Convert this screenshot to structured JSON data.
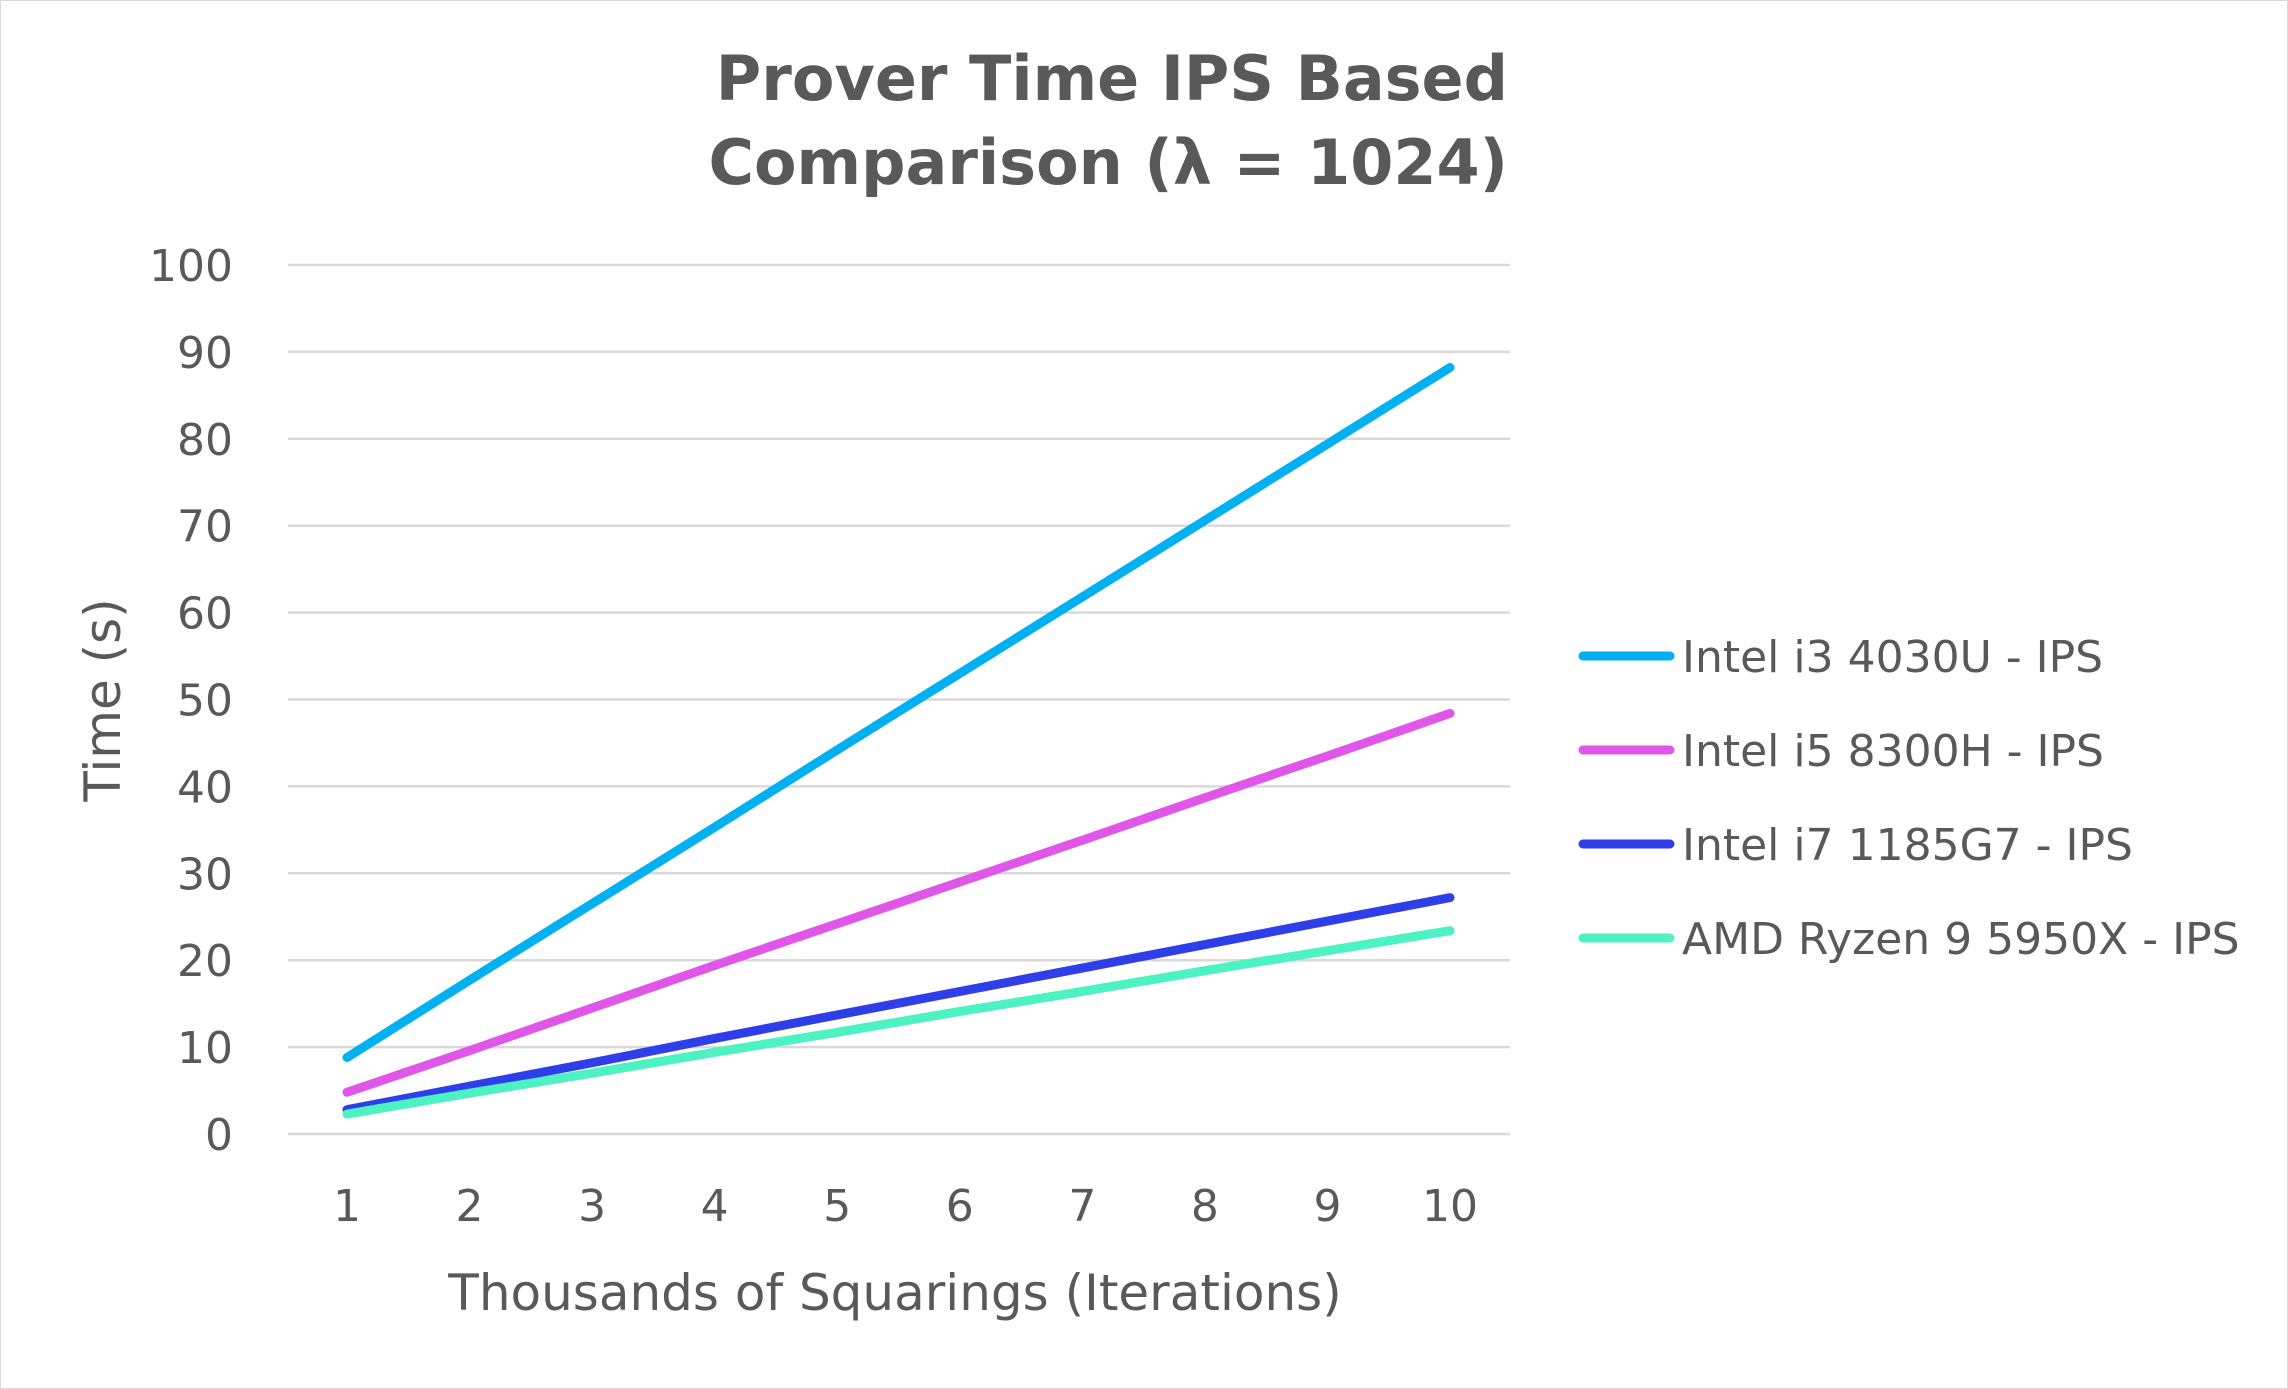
{
  "chart_data": {
    "type": "line",
    "title": [
      "Prover Time IPS Based",
      "Comparison (λ = 1024)"
    ],
    "xlabel": "Thousands of Squarings (Iterations)",
    "ylabel": "Time (s)",
    "x": [
      1,
      2,
      3,
      4,
      5,
      6,
      7,
      8,
      9,
      10
    ],
    "ylim": [
      0,
      100
    ],
    "yticks": [
      0,
      10,
      20,
      30,
      40,
      50,
      60,
      70,
      80,
      90,
      100
    ],
    "grid": true,
    "legend_position": "right",
    "series": [
      {
        "name": "Intel i3 4030U - IPS",
        "color": "#00b0f0",
        "values": [
          8.8,
          17.7,
          26.5,
          35.3,
          44.2,
          53.0,
          61.8,
          70.6,
          79.4,
          88.2
        ]
      },
      {
        "name": "Intel i5 8300H - IPS",
        "color": "#e056e8",
        "values": [
          4.8,
          9.6,
          14.5,
          19.4,
          24.2,
          29.0,
          33.8,
          38.7,
          43.5,
          48.4
        ]
      },
      {
        "name": "Intel i7 1185G7 - IPS",
        "color": "#2e3ee8",
        "values": [
          2.8,
          5.5,
          8.2,
          11.0,
          13.7,
          16.4,
          19.1,
          21.8,
          24.5,
          27.2
        ]
      },
      {
        "name": "AMD Ryzen 9 5950X - IPS",
        "color": "#4cf2c2",
        "values": [
          2.3,
          4.7,
          7.0,
          9.4,
          11.7,
          14.1,
          16.4,
          18.8,
          21.1,
          23.4
        ]
      }
    ]
  }
}
